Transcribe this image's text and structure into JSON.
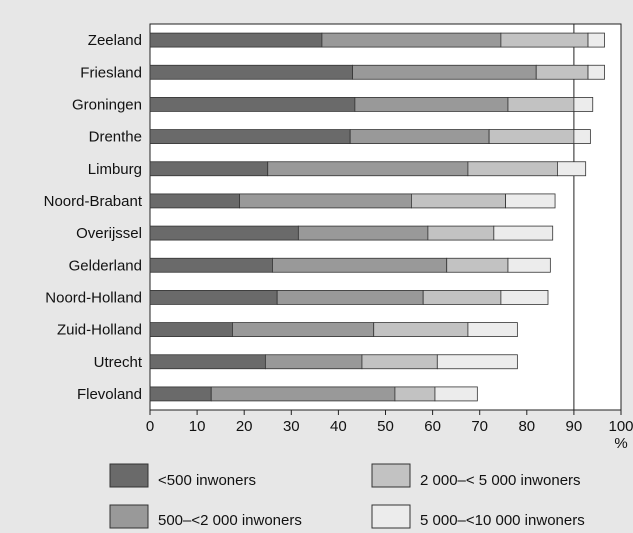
{
  "chart_data": {
    "type": "bar",
    "orientation": "horizontal",
    "stacked": true,
    "categories": [
      "Zeeland",
      "Friesland",
      "Groningen",
      "Drenthe",
      "Limburg",
      "Noord-Brabant",
      "Overijssel",
      "Gelderland",
      "Noord-Holland",
      "Zuid-Holland",
      "Utrecht",
      "Flevoland"
    ],
    "series": [
      {
        "name": "<500 inwoners",
        "color": "#6a6a6a",
        "values": [
          36.5,
          43,
          43.5,
          42.5,
          25,
          19,
          31.5,
          26,
          27,
          17.5,
          24.5,
          13
        ]
      },
      {
        "name": "500–<2 000 inwoners",
        "color": "#999999",
        "values": [
          38,
          39,
          32.5,
          29.5,
          42.5,
          36.5,
          27.5,
          37,
          31,
          30,
          20.5,
          39
        ]
      },
      {
        "name": "2 000–< 5 000 inwoners",
        "color": "#c2c2c2",
        "values": [
          18.5,
          11,
          14,
          18,
          19,
          20,
          14,
          13,
          16.5,
          20,
          16,
          8.5
        ]
      },
      {
        "name": "5 000–<10 000 inwoners",
        "color": "#ececec",
        "values": [
          3.5,
          3.5,
          4,
          3.5,
          6,
          10.5,
          12.5,
          9,
          10,
          10.5,
          17,
          9
        ]
      }
    ],
    "xlabel": "%",
    "xlim": [
      0,
      100
    ],
    "xticks": [
      "0",
      "10",
      "20",
      "30",
      "40",
      "50",
      "60",
      "70",
      "80",
      "90",
      "100"
    ],
    "reference_lines": [
      90
    ],
    "grid": false,
    "legend": "bottom"
  }
}
